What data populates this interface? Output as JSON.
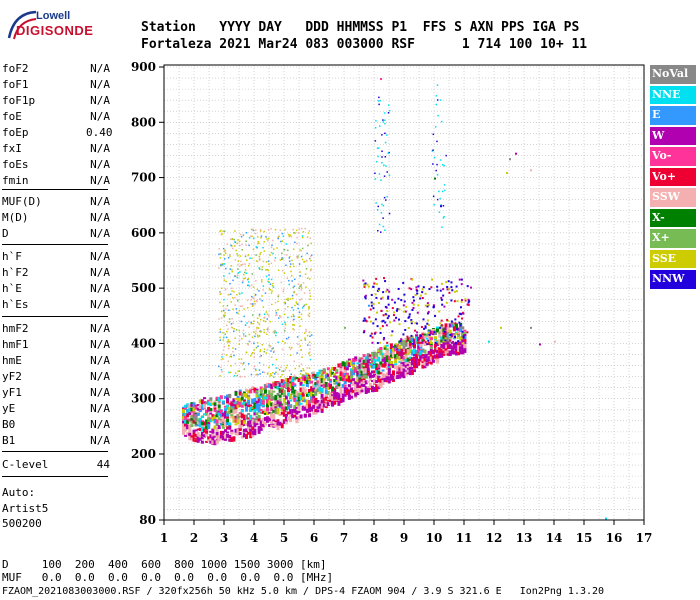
{
  "header": {
    "logo_line1": "Lowell",
    "logo_line2": "DIGISONDE",
    "columns": "Station   YYYY DAY   DDD HHMMSS P1  FFS S AXN PPS IGA PS",
    "values": "Fortaleza 2021 Mar24 083 003000 RSF      1 714 100 10+ 11"
  },
  "params": [
    {
      "name": "foF2",
      "value": "N/A"
    },
    {
      "name": "foF1",
      "value": "N/A"
    },
    {
      "name": "foF1p",
      "value": "N/A"
    },
    {
      "name": "foE",
      "value": "N/A"
    },
    {
      "name": "foEp",
      "value": "0.40"
    },
    {
      "name": "fxI",
      "value": "N/A"
    },
    {
      "name": "foEs",
      "value": "N/A"
    },
    {
      "name": "fmin",
      "value": "N/A"
    },
    {
      "name": "MUF(D)",
      "value": "N/A"
    },
    {
      "name": "M(D)",
      "value": "N/A"
    },
    {
      "name": "D",
      "value": "N/A"
    },
    {
      "name": "h`F",
      "value": "N/A"
    },
    {
      "name": "h`F2",
      "value": "N/A"
    },
    {
      "name": "h`E",
      "value": "N/A"
    },
    {
      "name": "h`Es",
      "value": "N/A"
    },
    {
      "name": "hmF2",
      "value": "N/A"
    },
    {
      "name": "hmF1",
      "value": "N/A"
    },
    {
      "name": "hmE",
      "value": "N/A"
    },
    {
      "name": "yF2",
      "value": "N/A"
    },
    {
      "name": "yF1",
      "value": "N/A"
    },
    {
      "name": "yE",
      "value": "N/A"
    },
    {
      "name": "B0",
      "value": "N/A"
    },
    {
      "name": "B1",
      "value": "N/A"
    },
    {
      "name": "C-level",
      "value": "44"
    }
  ],
  "auto": {
    "line1": "Auto:",
    "line2": "Artist5",
    "line3": "500200"
  },
  "footer": {
    "d_row": "D     100  200  400  600  800 1000 1500 3000 [km]",
    "muf_row": "MUF   0.0  0.0  0.0  0.0  0.0  0.0  0.0  0.0 [MHz]",
    "info": "FZAOM_2021083003000.RSF / 320fx256h 50 kHz 5.0 km / DPS-4 FZAOM 904 / 3.9 S 321.6 E   Ion2Png 1.3.20"
  },
  "legend": [
    {
      "label": "NoVal",
      "color": "#888888"
    },
    {
      "label": "NNE",
      "color": "#00e0f0"
    },
    {
      "label": "E",
      "color": "#3399ff"
    },
    {
      "label": "W",
      "color": "#b000b0"
    },
    {
      "label": "Vo-",
      "color": "#ff3399"
    },
    {
      "label": "Vo+",
      "color": "#ee0033"
    },
    {
      "label": "SSW",
      "color": "#f4b0b0"
    },
    {
      "label": "X-",
      "color": "#008000"
    },
    {
      "label": "X+",
      "color": "#77bb55"
    },
    {
      "label": "SSE",
      "color": "#cccc00"
    },
    {
      "label": "NNW",
      "color": "#2200dd"
    }
  ],
  "chart_data": {
    "type": "scatter",
    "xlabel": "",
    "ylabel": "",
    "x_ticks": [
      1,
      2,
      3,
      4,
      5,
      6,
      7,
      8,
      9,
      10,
      11,
      12,
      13,
      14,
      15,
      16,
      17
    ],
    "y_ticks": [
      80,
      200,
      300,
      400,
      500,
      600,
      700,
      800,
      900
    ],
    "xlim": [
      1,
      17
    ],
    "ylim_label_range": [
      80,
      900
    ],
    "grid": true,
    "traces": [
      {
        "name": "F-layer trace base",
        "points": [
          [
            1.6,
            235
          ],
          [
            2,
            225
          ],
          [
            2.5,
            222
          ],
          [
            3,
            225
          ],
          [
            3.5,
            232
          ],
          [
            4,
            240
          ],
          [
            4.5,
            248
          ],
          [
            5,
            255
          ],
          [
            5.5,
            265
          ],
          [
            6,
            275
          ],
          [
            6.5,
            290
          ],
          [
            7,
            300
          ],
          [
            7.5,
            312
          ],
          [
            8,
            320
          ],
          [
            8.5,
            335
          ],
          [
            9,
            345
          ],
          [
            9.5,
            358
          ],
          [
            10,
            370
          ],
          [
            10.5,
            380
          ],
          [
            11,
            388
          ]
        ]
      },
      {
        "name": "F-layer trace top",
        "points": [
          [
            1.6,
            290
          ],
          [
            2,
            300
          ],
          [
            2.5,
            305
          ],
          [
            3,
            310
          ],
          [
            3.5,
            318
          ],
          [
            4,
            325
          ],
          [
            4.5,
            330
          ],
          [
            5,
            340
          ],
          [
            5.5,
            345
          ],
          [
            6,
            350
          ],
          [
            6.5,
            360
          ],
          [
            7,
            370
          ],
          [
            7.5,
            380
          ],
          [
            8,
            390
          ],
          [
            8.5,
            400
          ],
          [
            9,
            410
          ],
          [
            9.5,
            420
          ],
          [
            10,
            430
          ],
          [
            10.5,
            440
          ],
          [
            11,
            440
          ]
        ]
      }
    ],
    "isolated_points": [
      {
        "x": 12.5,
        "y": 735
      },
      {
        "x": 12.7,
        "y": 745
      },
      {
        "x": 13.2,
        "y": 715
      },
      {
        "x": 12.4,
        "y": 710
      },
      {
        "x": 15.7,
        "y": 85
      },
      {
        "x": 8.2,
        "y": 880
      },
      {
        "x": 10,
        "y": 700
      },
      {
        "x": 10.2,
        "y": 650
      },
      {
        "x": 7.8,
        "y": 470
      },
      {
        "x": 8.3,
        "y": 520
      },
      {
        "x": 7,
        "y": 430
      },
      {
        "x": 13.2,
        "y": 430
      },
      {
        "x": 13.5,
        "y": 400
      },
      {
        "x": 14,
        "y": 405
      },
      {
        "x": 12.2,
        "y": 430
      },
      {
        "x": 11.8,
        "y": 405
      }
    ],
    "diffuse_region": {
      "x_range": [
        2.8,
        5.9
      ],
      "y_range": [
        340,
        610
      ]
    }
  }
}
